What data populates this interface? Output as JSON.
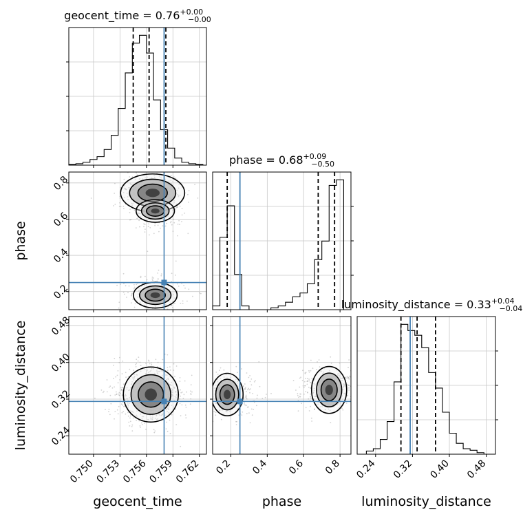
{
  "chart_data": {
    "type": "corner",
    "parameters": [
      "geocent_time",
      "phase",
      "luminosity_distance"
    ],
    "truths": [
      0.758,
      0.25,
      0.315
    ],
    "colors": {
      "truth": "#4682b4",
      "hist": "#000000",
      "grid": "#c8c8c8",
      "quantile": "#000000"
    },
    "grid": true,
    "panels": [
      {
        "id": "hist-geocent_time",
        "type": "histogram",
        "title": "geocent_time = 0.76",
        "title_sup": "+0.00",
        "title_sub": "−0.00",
        "x_param": "geocent_time",
        "xlim": [
          0.7472,
          0.7628
        ],
        "bin_edges": [
          0.7472,
          0.748,
          0.7488,
          0.7496,
          0.7504,
          0.7512,
          0.752,
          0.7528,
          0.7536,
          0.7544,
          0.7552,
          0.756,
          0.7568,
          0.7576,
          0.7584,
          0.7592,
          0.76,
          0.7608,
          0.7616,
          0.7624
        ],
        "counts": [
          1,
          2,
          4,
          8,
          12,
          22,
          42,
          80,
          130,
          172,
          183,
          158,
          92,
          50,
          24,
          10,
          4,
          2,
          1
        ],
        "quantile_lines": [
          0.7545,
          0.7563,
          0.7582
        ],
        "truth": 0.758
      },
      {
        "id": "hist-phase",
        "type": "histogram",
        "title": "phase = 0.68",
        "title_sup": "+0.09",
        "title_sub": "−0.50",
        "x_param": "phase",
        "xlim": [
          0.1,
          0.86
        ],
        "bin_edges": [
          0.1,
          0.14,
          0.18,
          0.22,
          0.26,
          0.3,
          0.34,
          0.38,
          0.42,
          0.46,
          0.5,
          0.54,
          0.58,
          0.62,
          0.66,
          0.7,
          0.74,
          0.78,
          0.82
        ],
        "counts": [
          2,
          39,
          56,
          19,
          2,
          0,
          0,
          0,
          1,
          2,
          4,
          7,
          9,
          14,
          27,
          37,
          67,
          70
        ],
        "quantile_lines": [
          0.18,
          0.68,
          0.77
        ],
        "truth": 0.25
      },
      {
        "id": "hist-luminosity_distance",
        "type": "histogram",
        "title": "luminosity_distance = 0.33",
        "title_sup": "+0.04",
        "title_sub": "−0.04",
        "x_param": "luminosity_distance",
        "xlim": [
          0.2,
          0.5
        ],
        "bin_edges": [
          0.22,
          0.235,
          0.25,
          0.265,
          0.28,
          0.295,
          0.31,
          0.325,
          0.34,
          0.355,
          0.37,
          0.385,
          0.4,
          0.415,
          0.43,
          0.445,
          0.46,
          0.475
        ],
        "counts": [
          4,
          7,
          19,
          42,
          93,
          167,
          159,
          153,
          137,
          105,
          85,
          54,
          27,
          14,
          7,
          5,
          2
        ],
        "quantile_lines": [
          0.295,
          0.33,
          0.37
        ],
        "truth": 0.315
      },
      {
        "id": "scatter-geocent_time-phase",
        "type": "2d-density",
        "x_param": "geocent_time",
        "y_param": "phase",
        "xlim": [
          0.7472,
          0.7628
        ],
        "ylim": [
          0.1,
          0.86
        ],
        "modes": [
          {
            "x": 0.7567,
            "y": 0.745,
            "weight": 0.56
          },
          {
            "x": 0.757,
            "y": 0.645,
            "weight": 0.18
          },
          {
            "x": 0.757,
            "y": 0.18,
            "weight": 0.26
          }
        ],
        "truth": [
          0.758,
          0.25
        ]
      },
      {
        "id": "scatter-geocent_time-luminosity_distance",
        "type": "2d-density",
        "x_param": "geocent_time",
        "y_param": "luminosity_distance",
        "xlim": [
          0.7472,
          0.7628
        ],
        "ylim": [
          0.2,
          0.5
        ],
        "modes": [
          {
            "x": 0.7565,
            "y": 0.33,
            "weight": 1.0
          }
        ],
        "truth": [
          0.758,
          0.315
        ]
      },
      {
        "id": "scatter-phase-luminosity_distance",
        "type": "2d-density",
        "x_param": "phase",
        "y_param": "luminosity_distance",
        "xlim": [
          0.1,
          0.86
        ],
        "ylim": [
          0.2,
          0.5
        ],
        "modes": [
          {
            "x": 0.18,
            "y": 0.33,
            "weight": 0.45
          },
          {
            "x": 0.74,
            "y": 0.34,
            "weight": 0.55
          }
        ],
        "truth": [
          0.25,
          0.315
        ]
      }
    ],
    "axes": {
      "geocent_time": {
        "label": "geocent_time",
        "ticks": [
          0.75,
          0.753,
          0.756,
          0.759,
          0.762
        ],
        "tick_labels": [
          "0.750",
          "0.753",
          "0.756",
          "0.759",
          "0.762"
        ]
      },
      "phase": {
        "label": "phase",
        "ticks": [
          0.2,
          0.4,
          0.6,
          0.8
        ],
        "tick_labels": [
          "0.2",
          "0.4",
          "0.6",
          "0.8"
        ]
      },
      "luminosity_distance": {
        "label": "luminosity_distance",
        "ticks": [
          0.24,
          0.32,
          0.4,
          0.48
        ],
        "tick_labels": [
          "0.24",
          "0.32",
          "0.40",
          "0.48"
        ]
      }
    }
  }
}
